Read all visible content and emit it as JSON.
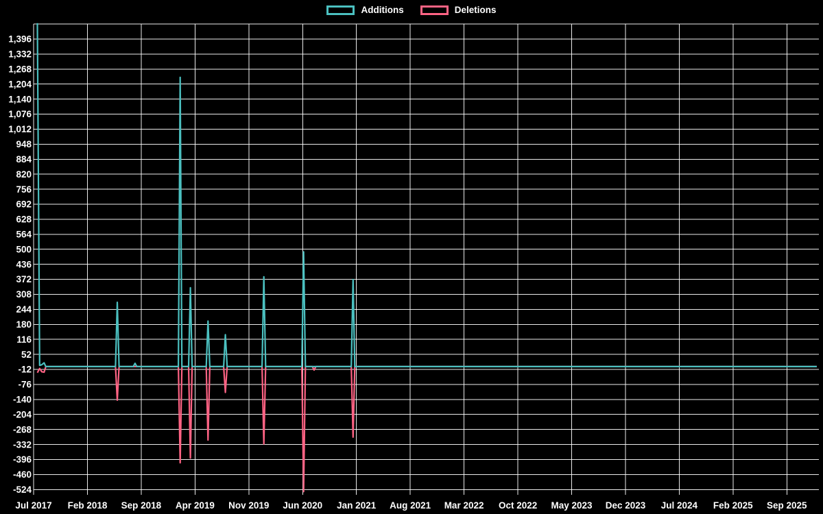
{
  "chart_data": {
    "type": "line",
    "title": "",
    "background": "#000000",
    "grid_color": "#ffffff",
    "text_color": "#ffffff",
    "legend_position": "top-center",
    "series": [
      {
        "name": "Additions",
        "color": "#4bc0c0",
        "key": "additions"
      },
      {
        "name": "Deletions",
        "color": "#ff6384",
        "key": "deletions"
      }
    ],
    "x_tick_labels": [
      "Jul 2017",
      "Feb 2018",
      "Sep 2018",
      "Apr 2019",
      "Nov 2019",
      "Jun 2020",
      "Jan 2021",
      "Aug 2021",
      "Mar 2022",
      "Oct 2022",
      "May 2023",
      "Dec 2023",
      "Jul 2024",
      "Feb 2025",
      "Sep 2025"
    ],
    "x_tick_interval_months": 7,
    "x_start": "2017-07-01",
    "x_end": "2025-12-28",
    "y_axis": {
      "min": -524,
      "max": 1396,
      "step": 64,
      "top_line": 1460
    },
    "points": [
      {
        "date": "2017-07-16",
        "additions": 1464,
        "deletions": -26
      },
      {
        "date": "2017-07-25",
        "additions": 5,
        "deletions": -8
      },
      {
        "date": "2017-08-03",
        "additions": 8,
        "deletions": -22
      },
      {
        "date": "2017-08-12",
        "additions": 16,
        "deletions": -24
      },
      {
        "date": "2018-05-28",
        "additions": 274,
        "deletions": -143
      },
      {
        "date": "2018-08-07",
        "additions": 14,
        "deletions": 0
      },
      {
        "date": "2019-02-03",
        "additions": 1233,
        "deletions": -410
      },
      {
        "date": "2019-03-13",
        "additions": 336,
        "deletions": -390
      },
      {
        "date": "2019-05-22",
        "additions": 194,
        "deletions": -313
      },
      {
        "date": "2019-07-30",
        "additions": 136,
        "deletions": -110
      },
      {
        "date": "2019-12-30",
        "additions": 383,
        "deletions": -330
      },
      {
        "date": "2020-06-05",
        "additions": 489,
        "deletions": -533
      },
      {
        "date": "2020-07-16",
        "additions": 0,
        "deletions": -15
      },
      {
        "date": "2020-12-18",
        "additions": 371,
        "deletions": -301
      }
    ]
  }
}
